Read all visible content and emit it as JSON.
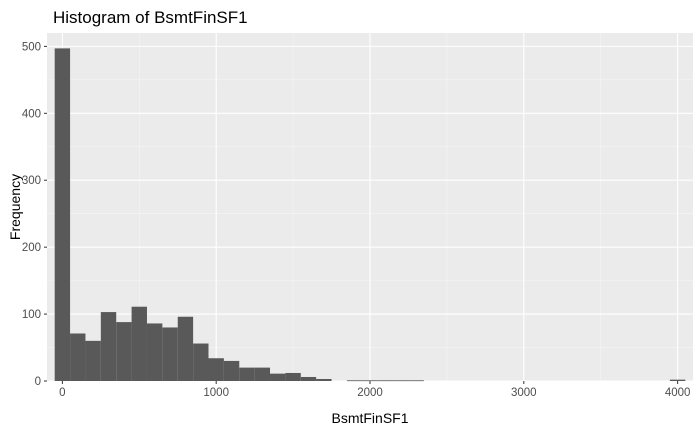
{
  "chart_data": {
    "type": "bar",
    "title": "Histogram of BsmtFinSF1",
    "xlabel": "BsmtFinSF1",
    "ylabel": "Frequency",
    "xlim": [
      -100,
      4100
    ],
    "ylim": [
      0,
      520
    ],
    "x_ticks": [
      0,
      1000,
      2000,
      3000,
      4000
    ],
    "y_ticks": [
      0,
      100,
      200,
      300,
      400,
      500
    ],
    "x_tick_labels": [
      "0",
      "1000",
      "2000",
      "3000",
      "4000"
    ],
    "y_tick_labels": [
      "0",
      "100",
      "200",
      "300",
      "400",
      "500"
    ],
    "bin_width": 100,
    "bin_centers": [
      0,
      100,
      200,
      300,
      400,
      500,
      600,
      700,
      800,
      900,
      1000,
      1100,
      1200,
      1300,
      1400,
      1500,
      1600,
      1700,
      1800,
      1900,
      2000,
      2100,
      2200,
      2300,
      4000
    ],
    "counts": [
      497,
      71,
      60,
      103,
      88,
      111,
      86,
      80,
      96,
      56,
      34,
      30,
      20,
      20,
      11,
      12,
      6,
      3,
      0,
      1,
      1,
      1,
      1,
      1,
      2
    ],
    "colors": {
      "panel": "#ebebeb",
      "grid_major": "#ffffff",
      "grid_minor": "#f5f5f5",
      "bar": "#595959"
    },
    "grid": true,
    "legend": "none"
  }
}
